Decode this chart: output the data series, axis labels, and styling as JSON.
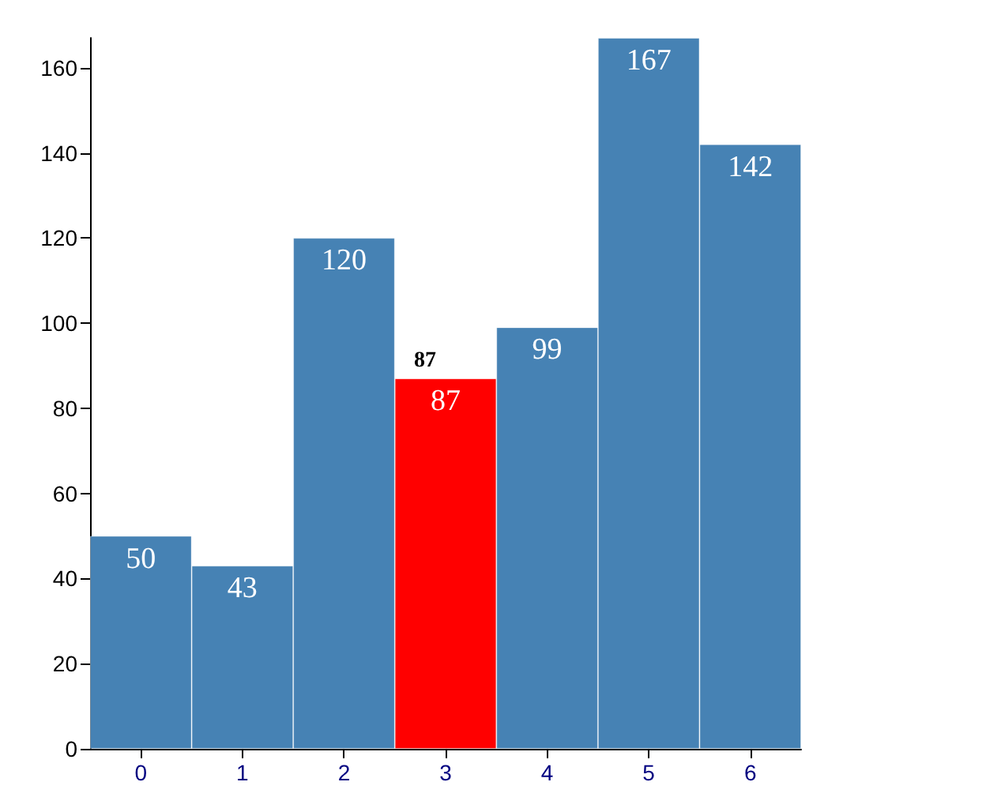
{
  "chart_data": {
    "type": "bar",
    "categories": [
      "0",
      "1",
      "2",
      "3",
      "4",
      "5",
      "6"
    ],
    "values": [
      50,
      43,
      120,
      87,
      99,
      167,
      142
    ],
    "colors": [
      "#4682b4",
      "#4682b4",
      "#4682b4",
      "#ff0000",
      "#4682b4",
      "#4682b4",
      "#4682b4"
    ],
    "ylim": [
      0,
      167
    ],
    "yticks": [
      0,
      20,
      40,
      60,
      80,
      100,
      120,
      140,
      160
    ],
    "grid": false,
    "data_labels": true,
    "annotations": [
      {
        "text": "87",
        "x": "3",
        "y": 87
      }
    ]
  }
}
